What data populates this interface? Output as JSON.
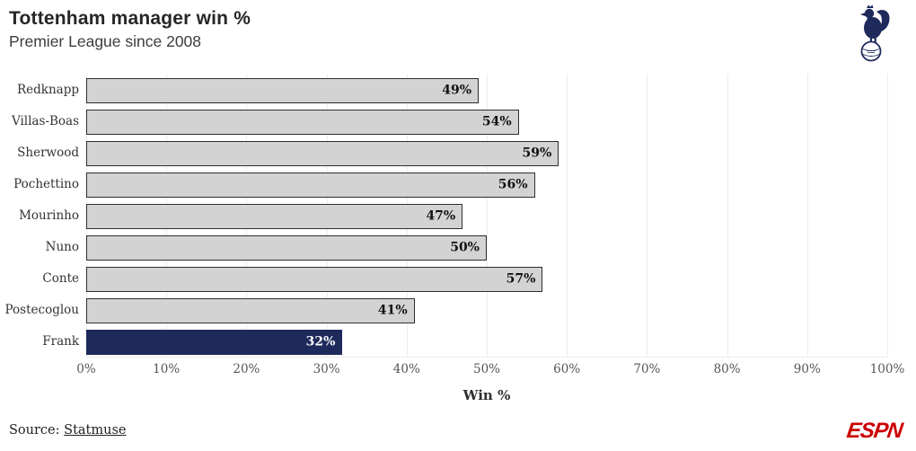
{
  "header": {
    "title": "Tottenham manager win %",
    "subtitle": "Premier League since 2008"
  },
  "branding": {
    "club_crest": "tottenham-hotspur-crest",
    "network_logo_label": "ESPN"
  },
  "chart_data": {
    "type": "bar",
    "orientation": "horizontal",
    "title": "Tottenham manager win %",
    "subtitle": "Premier League since 2008",
    "categories": [
      "Redknapp",
      "Villas-Boas",
      "Sherwood",
      "Pochettino",
      "Mourinho",
      "Nuno",
      "Conte",
      "Postecoglou",
      "Frank"
    ],
    "values": [
      49,
      54,
      59,
      56,
      47,
      50,
      57,
      41,
      32
    ],
    "value_labels": [
      "49%",
      "54%",
      "59%",
      "56%",
      "47%",
      "50%",
      "57%",
      "41%",
      "32%"
    ],
    "highlight_category": "Frank",
    "xlabel": "Win %",
    "x_ticks": [
      "0%",
      "10%",
      "20%",
      "30%",
      "40%",
      "50%",
      "60%",
      "70%",
      "80%",
      "90%",
      "100%"
    ],
    "x_tick_values": [
      0,
      10,
      20,
      30,
      40,
      50,
      60,
      70,
      80,
      90,
      100
    ],
    "xlim": [
      0,
      100
    ],
    "grid": true,
    "colors": {
      "bar_fill": "#d3d3d3",
      "bar_border": "#2e2e2e",
      "highlight_fill": "#1e2a5b",
      "value_text": "#111111",
      "highlight_value_text": "#ffffff",
      "grid_line": "#ececec",
      "axis_text": "#555555",
      "category_text": "#333333",
      "espn_red": "#cc0000"
    }
  },
  "footer": {
    "source_prefix": "Source: ",
    "source_link": "Statmuse"
  }
}
